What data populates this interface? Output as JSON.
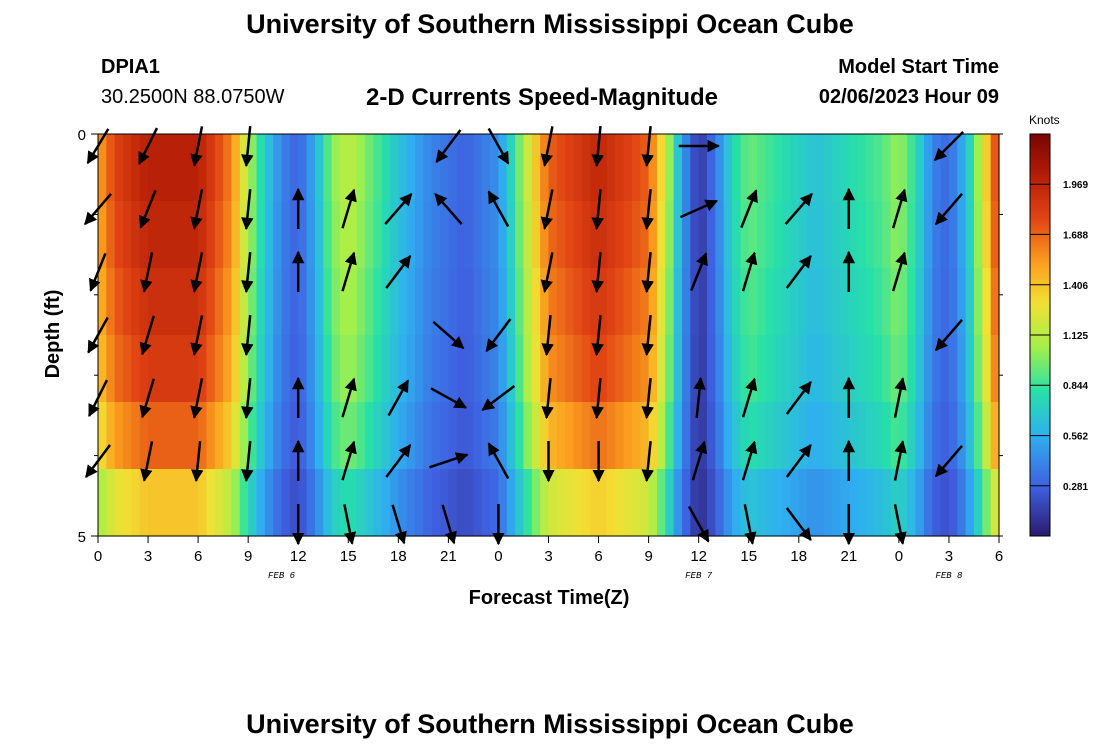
{
  "page": {
    "title": "University of Southern Mississippi Ocean Cube",
    "station_id": "DPIA1",
    "coordinates": "30.2500N  88.0750W",
    "subtitle": "2-D Currents Speed-Magnitude",
    "model_start_label": "Model Start Time",
    "model_start_value": "02/06/2023 Hour 09",
    "bottom_title": "University of Southern Mississippi Ocean Cube"
  },
  "chart_data": {
    "type": "heatmap",
    "title": "2-D Currents Speed-Magnitude",
    "xlabel": "Forecast Time(Z)",
    "ylabel": "Depth (ft)",
    "units": "Knots",
    "hours_range": [
      0,
      54
    ],
    "ylim": [
      0,
      5
    ],
    "y_ticks": [
      "0",
      "5"
    ],
    "x_ticks": [
      "0",
      "3",
      "6",
      "9",
      "12",
      "15",
      "18",
      "21",
      "0",
      "3",
      "6",
      "9",
      "12",
      "15",
      "18",
      "21",
      "0",
      "3",
      "6"
    ],
    "date_labels": [
      {
        "text": "FEB 6",
        "hour": 11
      },
      {
        "text": "FEB 7",
        "hour": 36
      },
      {
        "text": "FEB 8",
        "hour": 51
      }
    ],
    "colorbar": {
      "label": "Knots",
      "min": 0,
      "max": 2.25,
      "ticks": [
        "1.969",
        "1.688",
        "1.406",
        "1.125",
        "0.844",
        "0.562",
        "0.281"
      ],
      "tick_values": [
        1.969,
        1.688,
        1.406,
        1.125,
        0.844,
        0.562,
        0.281
      ]
    },
    "speed_profile_surface": [
      {
        "hour": 0,
        "speed": 1.5
      },
      {
        "hour": 1,
        "speed": 1.8
      },
      {
        "hour": 3,
        "speed": 2.0
      },
      {
        "hour": 6,
        "speed": 2.0
      },
      {
        "hour": 8,
        "speed": 1.6
      },
      {
        "hour": 9,
        "speed": 1.1
      },
      {
        "hour": 10,
        "speed": 0.7
      },
      {
        "hour": 11,
        "speed": 0.4
      },
      {
        "hour": 12,
        "speed": 0.28
      },
      {
        "hour": 13,
        "speed": 0.55
      },
      {
        "hour": 14,
        "speed": 1.0
      },
      {
        "hour": 15,
        "speed": 1.15
      },
      {
        "hour": 16,
        "speed": 1.0
      },
      {
        "hour": 18,
        "speed": 0.65
      },
      {
        "hour": 20,
        "speed": 0.4
      },
      {
        "hour": 22,
        "speed": 0.28
      },
      {
        "hour": 24,
        "speed": 0.45
      },
      {
        "hour": 25,
        "speed": 0.85
      },
      {
        "hour": 26,
        "speed": 1.3
      },
      {
        "hour": 27,
        "speed": 1.7
      },
      {
        "hour": 30,
        "speed": 1.95
      },
      {
        "hour": 33,
        "speed": 1.7
      },
      {
        "hour": 34,
        "speed": 1.2
      },
      {
        "hour": 35,
        "speed": 0.5
      },
      {
        "hour": 36,
        "speed": 0.1
      },
      {
        "hour": 37,
        "speed": 0.35
      },
      {
        "hour": 38,
        "speed": 0.75
      },
      {
        "hour": 39,
        "speed": 0.95
      },
      {
        "hour": 41,
        "speed": 0.8
      },
      {
        "hour": 43,
        "speed": 0.65
      },
      {
        "hour": 47,
        "speed": 0.9
      },
      {
        "hour": 48,
        "speed": 1.05
      },
      {
        "hour": 49,
        "speed": 0.8
      },
      {
        "hour": 50,
        "speed": 0.4
      },
      {
        "hour": 51,
        "speed": 0.3
      },
      {
        "hour": 52,
        "speed": 0.6
      },
      {
        "hour": 53,
        "speed": 1.2
      },
      {
        "hour": 54,
        "speed": 1.9
      }
    ],
    "depth_factors": [
      1.0,
      0.98,
      0.95,
      0.92,
      0.85,
      0.7
    ],
    "vectors": {
      "hours": [
        0,
        3,
        6,
        9,
        12,
        15,
        18,
        21,
        24,
        27,
        30,
        33,
        36,
        39,
        42,
        45,
        48,
        51
      ],
      "rows": [
        [
          [
            -0.6,
            1
          ],
          [
            -0.5,
            1
          ],
          [
            -0.2,
            1
          ],
          [
            -0.1,
            1
          ],
          null,
          null,
          null,
          [
            -0.6,
            0.8
          ],
          [
            0.5,
            0.9
          ],
          [
            -0.2,
            1
          ],
          [
            -0.1,
            1
          ],
          [
            -0.1,
            1
          ],
          [
            1,
            0
          ],
          null,
          null,
          null,
          null,
          [
            -0.7,
            0.7
          ]
        ],
        [
          [
            -0.6,
            0.7
          ],
          [
            -0.4,
            1
          ],
          [
            -0.2,
            1
          ],
          [
            -0.1,
            1
          ],
          [
            0,
            -1
          ],
          [
            0.3,
            -1
          ],
          [
            0.7,
            -0.8
          ],
          [
            -0.7,
            -0.8
          ],
          [
            -0.5,
            -0.9
          ],
          [
            -0.2,
            1
          ],
          [
            -0.1,
            1
          ],
          [
            -0.1,
            1
          ],
          [
            0.9,
            -0.4
          ],
          [
            0.4,
            -1
          ],
          [
            0.7,
            -0.8
          ],
          [
            0,
            -1
          ],
          [
            0.3,
            -1
          ],
          [
            -0.6,
            0.7
          ]
        ],
        [
          [
            -0.4,
            1
          ],
          [
            -0.2,
            1
          ],
          [
            -0.2,
            1
          ],
          [
            -0.1,
            1
          ],
          [
            0,
            -1
          ],
          [
            0.3,
            -1
          ],
          [
            0.6,
            -0.8
          ],
          null,
          null,
          [
            -0.2,
            1
          ],
          [
            -0.1,
            1
          ],
          [
            -0.1,
            1
          ],
          [
            0.4,
            -1
          ],
          [
            0.3,
            -1
          ],
          [
            0.6,
            -0.8
          ],
          [
            0,
            -1
          ],
          [
            0.3,
            -1
          ],
          null
        ],
        [
          [
            -0.5,
            0.9
          ],
          [
            -0.3,
            1
          ],
          [
            -0.2,
            1
          ],
          [
            -0.1,
            1
          ],
          null,
          null,
          null,
          [
            0.8,
            0.7
          ],
          [
            -0.6,
            0.8
          ],
          [
            -0.1,
            1
          ],
          [
            -0.1,
            1
          ],
          [
            -0.1,
            1
          ],
          null,
          null,
          null,
          null,
          null,
          [
            -0.6,
            0.7
          ]
        ],
        [
          [
            -0.5,
            1
          ],
          [
            -0.3,
            1
          ],
          [
            -0.2,
            1
          ],
          [
            -0.1,
            1
          ],
          [
            0,
            -1
          ],
          [
            0.3,
            -1
          ],
          [
            0.5,
            -0.9
          ],
          [
            0.9,
            0.5
          ],
          [
            -0.8,
            0.6
          ],
          [
            -0.1,
            1
          ],
          [
            -0.1,
            1
          ],
          [
            -0.1,
            1
          ],
          [
            0.1,
            -1
          ],
          [
            0.3,
            -1
          ],
          [
            0.6,
            -0.8
          ],
          [
            0,
            -1
          ],
          [
            0.2,
            -1
          ],
          null
        ],
        [
          [
            -0.6,
            0.8
          ],
          [
            -0.2,
            1
          ],
          [
            -0.1,
            1
          ],
          [
            -0.1,
            1
          ],
          [
            0,
            -1
          ],
          [
            0.3,
            -1
          ],
          [
            0.6,
            -0.8
          ],
          [
            0.9,
            -0.3
          ],
          [
            -0.5,
            -0.9
          ],
          [
            0,
            1
          ],
          [
            0,
            1
          ],
          [
            -0.1,
            1
          ],
          [
            0.3,
            -1
          ],
          [
            0.3,
            -1
          ],
          [
            0.6,
            -0.8
          ],
          [
            0,
            -1
          ],
          [
            0.2,
            -1
          ],
          [
            -0.6,
            0.7
          ]
        ],
        [
          null,
          null,
          null,
          null,
          [
            0,
            1
          ],
          [
            0.2,
            1
          ],
          [
            0.3,
            1
          ],
          [
            0.3,
            1
          ],
          [
            0,
            1
          ],
          null,
          null,
          null,
          [
            0.5,
            0.9
          ],
          [
            0.2,
            1
          ],
          [
            0.6,
            0.8
          ],
          [
            0,
            1
          ],
          [
            0.2,
            1
          ],
          null
        ]
      ]
    },
    "annotations": []
  }
}
